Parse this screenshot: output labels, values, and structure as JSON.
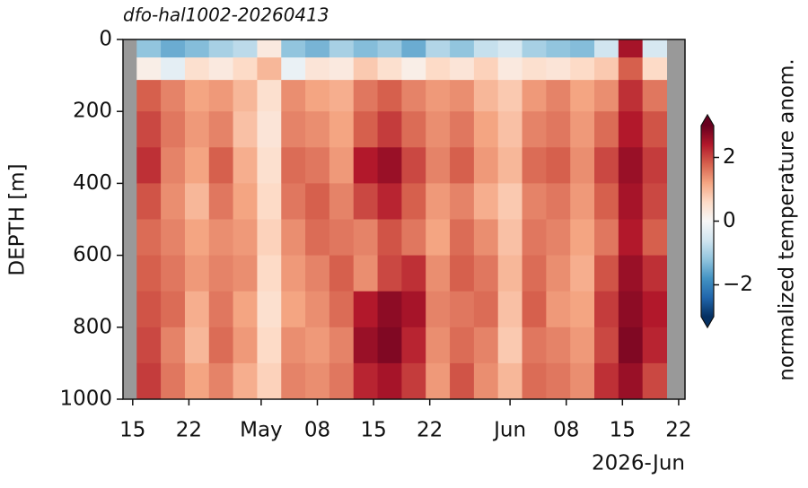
{
  "chart_data": {
    "type": "heatmap",
    "title": "dfo-hal1002-20260413",
    "ylabel": "DEPTH [m]",
    "x_offset_label": "2026-Jun",
    "x": [
      "2026-04-14",
      "2026-04-17",
      "2026-04-20",
      "2026-04-23",
      "2026-04-26",
      "2026-04-29",
      "2026-05-02",
      "2026-05-05",
      "2026-05-08",
      "2026-05-11",
      "2026-05-14",
      "2026-05-17",
      "2026-05-20",
      "2026-05-23",
      "2026-05-26",
      "2026-05-29",
      "2026-06-01",
      "2026-06-04",
      "2026-06-07",
      "2026-06-10",
      "2026-06-13",
      "2026-06-16",
      "2026-06-19",
      "2026-06-22"
    ],
    "y": [
      25,
      75,
      150,
      250,
      350,
      450,
      550,
      650,
      750,
      850,
      950
    ],
    "z": [
      [
        null,
        -1.2,
        -1.5,
        -1.3,
        -1.0,
        -0.8,
        0.3,
        -1.2,
        -1.4,
        -1.0,
        -1.3,
        -1.1,
        -1.5,
        -0.9,
        -1.2,
        -0.7,
        -0.5,
        -1.0,
        -1.2,
        -1.3,
        -0.6,
        2.5,
        -0.5,
        null
      ],
      [
        null,
        0.2,
        -0.3,
        0.5,
        0.3,
        0.6,
        1.0,
        -0.2,
        0.4,
        0.3,
        0.8,
        0.5,
        0.2,
        0.6,
        0.4,
        0.7,
        0.3,
        0.5,
        0.4,
        0.6,
        0.8,
        1.8,
        0.6,
        null
      ],
      [
        null,
        1.8,
        1.5,
        1.2,
        1.3,
        1.0,
        0.5,
        1.4,
        1.2,
        1.1,
        1.6,
        1.8,
        1.5,
        1.3,
        1.4,
        1.0,
        0.8,
        1.3,
        1.5,
        1.2,
        1.4,
        2.2,
        1.6,
        null
      ],
      [
        null,
        2.0,
        1.6,
        1.3,
        1.5,
        0.9,
        0.4,
        1.5,
        1.4,
        1.2,
        1.8,
        2.1,
        1.7,
        1.4,
        1.6,
        1.2,
        0.9,
        1.5,
        1.6,
        1.3,
        1.7,
        2.4,
        1.9,
        null
      ],
      [
        null,
        2.2,
        1.5,
        1.2,
        1.8,
        1.1,
        0.5,
        1.7,
        1.6,
        1.3,
        2.4,
        2.6,
        2.0,
        1.5,
        1.8,
        1.3,
        1.0,
        1.7,
        1.8,
        1.4,
        2.0,
        2.6,
        2.1,
        null
      ],
      [
        null,
        1.9,
        1.4,
        1.0,
        1.6,
        1.2,
        0.6,
        1.6,
        1.8,
        1.5,
        2.0,
        2.3,
        1.8,
        1.3,
        1.5,
        1.1,
        0.8,
        1.5,
        1.6,
        1.3,
        1.8,
        2.5,
        2.0,
        null
      ],
      [
        null,
        1.7,
        1.5,
        1.2,
        1.4,
        1.3,
        0.7,
        1.4,
        1.7,
        1.6,
        1.5,
        1.9,
        1.6,
        1.2,
        1.7,
        1.4,
        0.9,
        1.6,
        1.5,
        1.2,
        1.6,
        2.4,
        1.8,
        null
      ],
      [
        null,
        1.8,
        1.6,
        1.3,
        1.5,
        1.4,
        0.6,
        1.3,
        1.5,
        1.8,
        1.4,
        2.0,
        2.2,
        1.4,
        1.8,
        1.6,
        1.0,
        1.7,
        1.4,
        1.1,
        1.9,
        2.6,
        2.2,
        null
      ],
      [
        null,
        1.9,
        1.7,
        1.1,
        1.6,
        1.2,
        0.5,
        1.2,
        1.4,
        1.7,
        2.4,
        2.7,
        2.5,
        1.5,
        1.6,
        1.7,
        0.9,
        1.8,
        1.3,
        1.2,
        2.1,
        2.7,
        2.4,
        null
      ],
      [
        null,
        2.0,
        1.5,
        1.0,
        1.7,
        1.3,
        0.6,
        1.4,
        1.3,
        1.5,
        2.6,
        2.8,
        2.3,
        1.4,
        1.7,
        1.5,
        0.8,
        1.6,
        1.5,
        1.3,
        2.0,
        2.8,
        2.3,
        null
      ],
      [
        null,
        2.1,
        1.6,
        1.2,
        1.5,
        1.1,
        0.7,
        1.5,
        1.4,
        1.6,
        2.3,
        2.5,
        2.1,
        1.3,
        1.9,
        1.4,
        1.0,
        1.7,
        1.6,
        1.4,
        2.2,
        2.6,
        2.0,
        null
      ]
    ],
    "xlim": [
      "2026-04-13T19:00Z",
      "2026-06-22T19:00Z"
    ],
    "xticks": [
      {
        "value": "2026-04-15",
        "label": "15"
      },
      {
        "value": "2026-04-22",
        "label": "22"
      },
      {
        "value": "2026-05-01",
        "label": "May"
      },
      {
        "value": "2026-05-08",
        "label": "08"
      },
      {
        "value": "2026-05-15",
        "label": "15"
      },
      {
        "value": "2026-05-22",
        "label": "22"
      },
      {
        "value": "2026-06-01",
        "label": "Jun"
      },
      {
        "value": "2026-06-08",
        "label": "08"
      },
      {
        "value": "2026-06-15",
        "label": "15"
      },
      {
        "value": "2026-06-22",
        "label": "22"
      }
    ],
    "ylim": [
      0,
      1000
    ],
    "invert_y": true,
    "yticks": [
      0,
      200,
      400,
      600,
      800,
      1000
    ],
    "nan_color": "#999999",
    "colormap": [
      "#053061",
      "#2166ac",
      "#4393c3",
      "#92c5de",
      "#d1e5f0",
      "#f7f7f7",
      "#fddbc7",
      "#f4a582",
      "#d6604d",
      "#b2182b",
      "#67001f"
    ],
    "colorbar": {
      "label": "normalized temperature anom.",
      "lim": [
        -3,
        3
      ],
      "extend": "both",
      "ticks": [
        {
          "value": -2,
          "label": "−2"
        },
        0,
        2
      ]
    }
  }
}
